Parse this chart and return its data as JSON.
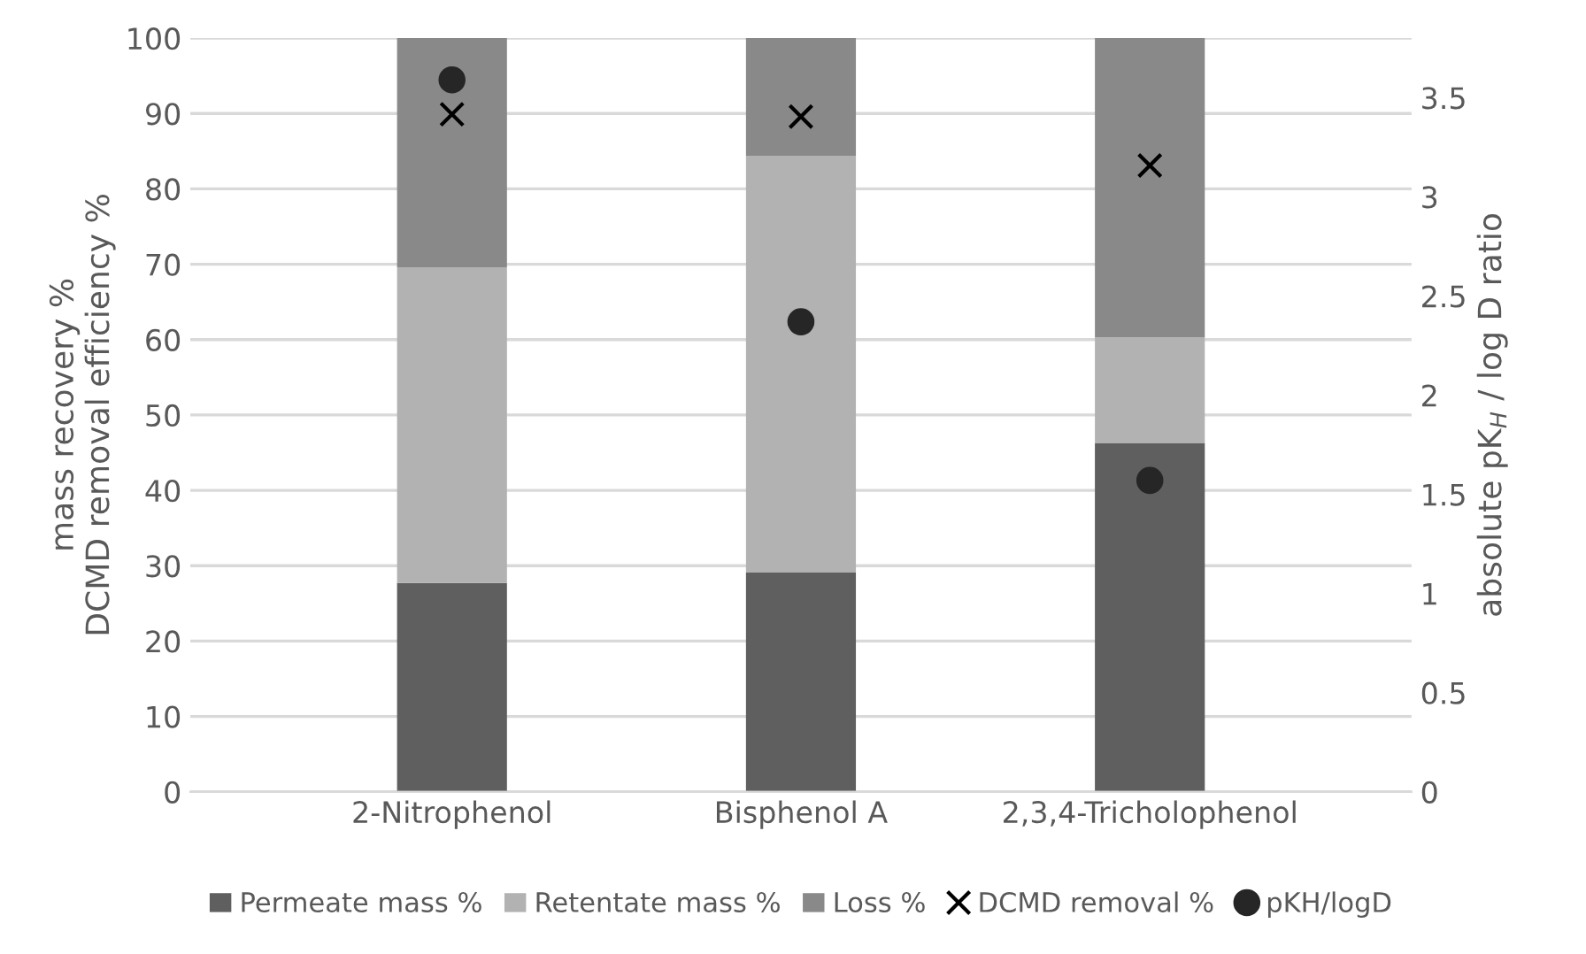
{
  "chart_data": {
    "type": "bar",
    "stacked": true,
    "categories": [
      "2-Nitrophenol",
      "Bisphenol A",
      "2,3,4-Tricholophenol"
    ],
    "ylabel": "mass recovery %\nDCMD removal efficiency %",
    "y2label": "absolute pK$_{H}$ / log D ratio",
    "ylim": [
      0,
      100
    ],
    "yticks": [
      0,
      10,
      20,
      30,
      40,
      50,
      60,
      70,
      80,
      90,
      100
    ],
    "y2lim": [
      0,
      3.8
    ],
    "y2ticks": [
      0,
      0.5,
      1,
      1.5,
      2,
      2.5,
      3,
      3.5
    ],
    "grid": "y",
    "legend": "bottom",
    "series": [
      {
        "name": "Permeate mass %",
        "color": "#5f5f5f",
        "values": [
          27.7,
          29.1,
          46.3
        ]
      },
      {
        "name": "Retentate mass %",
        "color": "#b2b2b2",
        "values": [
          41.9,
          55.3,
          14.0
        ]
      },
      {
        "name": "Loss %",
        "color": "#898989",
        "values": [
          30.4,
          15.6,
          39.7
        ]
      },
      {
        "name": "DCMD removal %",
        "type": "scatter",
        "marker": "cross",
        "color": "#000000",
        "values": [
          89.9,
          89.6,
          83.1
        ]
      },
      {
        "name": "pKH/logD",
        "type": "scatter",
        "marker": "circle",
        "axis": "y2",
        "color": "#262626",
        "values": [
          3.59,
          2.37,
          1.57
        ]
      }
    ]
  }
}
